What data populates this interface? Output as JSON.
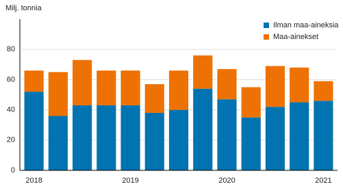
{
  "chart_data": {
    "type": "stacked-bar",
    "y_label": "Milj. tonnia",
    "categories": [
      "2018",
      null,
      null,
      null,
      "2019",
      null,
      null,
      null,
      "2020",
      null,
      null,
      null,
      "2021"
    ],
    "series": [
      {
        "name": "Ilman maa-aineksia",
        "color": "#0073b0",
        "values": [
          52,
          36,
          43,
          43,
          43,
          38,
          40,
          54,
          47,
          35,
          42,
          45,
          46
        ]
      },
      {
        "name": "Maa-ainekset",
        "color": "#ee7203",
        "values": [
          14,
          29,
          30,
          23,
          23,
          19,
          26,
          22,
          20,
          20,
          27,
          23,
          13
        ]
      }
    ],
    "ylim": [
      0,
      100
    ],
    "yticks": [
      0,
      20,
      40,
      60,
      80
    ],
    "grid": true
  }
}
